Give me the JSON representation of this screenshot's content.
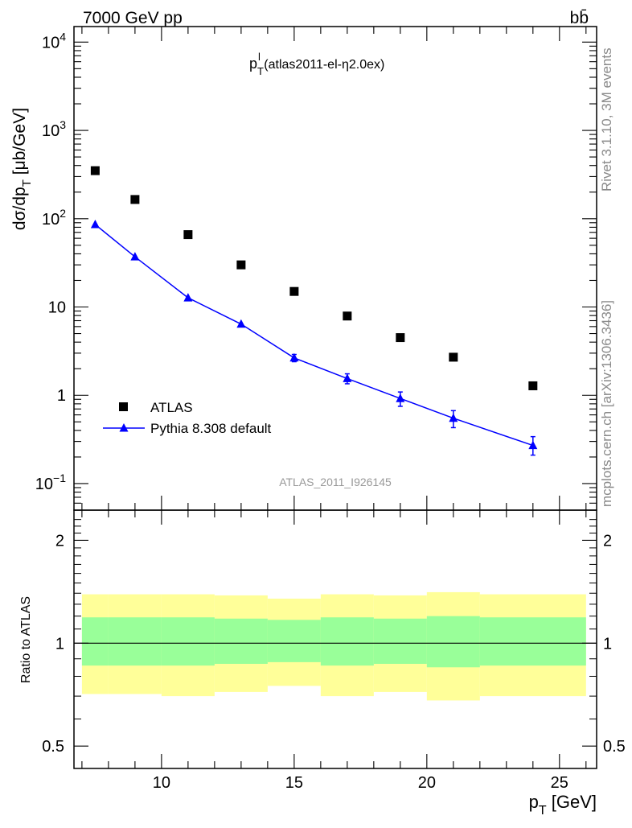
{
  "header": {
    "energy_label": "7000 GeV pp",
    "process_label": "bb̄"
  },
  "side": {
    "rivet_label": "Rivet 3.1.10,  3M events",
    "mcplots_label": "mcplots.cern.ch [arXiv:1306.3436]"
  },
  "chart_data": [
    {
      "type": "scatter",
      "title": "p_T^l (atlas2011-el-η2.0ex)",
      "title_main": "p",
      "title_sub": "T",
      "title_sup": "l",
      "title_rest": " (atlas2011-el-η2.0ex)",
      "ylabel": "dσ/dp_T [μb/GeV]",
      "ylabel_main": "dσ/dp",
      "ylabel_sub": "T",
      "ylabel_rest": " [μb/GeV]",
      "watermark": "ATLAS_2011_I926145",
      "yscale": "log",
      "xlim": [
        6.7,
        26.4
      ],
      "ylim": [
        0.05,
        15000
      ],
      "y_tick_labels": [
        {
          "value": 0.1,
          "label": "10",
          "sup": "−1"
        },
        {
          "value": 1,
          "label": "1",
          "sup": ""
        },
        {
          "value": 10,
          "label": "10",
          "sup": ""
        },
        {
          "value": 100,
          "label": "10",
          "sup": "2"
        },
        {
          "value": 1000,
          "label": "10",
          "sup": "3"
        },
        {
          "value": 10000,
          "label": "10",
          "sup": "4"
        }
      ],
      "legend_position": "bottom-left",
      "series": [
        {
          "name": "ATLAS",
          "color": "#000000",
          "marker": "square",
          "x": [
            7.5,
            9,
            11,
            13,
            15,
            17,
            19,
            21,
            24
          ],
          "y": [
            350,
            165,
            66,
            30,
            15,
            7.9,
            4.5,
            2.7,
            1.28
          ]
        },
        {
          "name": "Pythia 8.308 default",
          "color": "#0000ff",
          "marker": "triangle",
          "x": [
            7.5,
            9,
            11,
            13,
            15,
            17,
            19,
            21,
            24
          ],
          "y": [
            86,
            37,
            12.7,
            6.4,
            2.65,
            1.55,
            0.92,
            0.55,
            0.27
          ],
          "err_low": [
            3,
            1.5,
            0.6,
            0.35,
            0.25,
            0.2,
            0.17,
            0.12,
            0.06
          ],
          "err_high": [
            3,
            1.5,
            0.6,
            0.35,
            0.25,
            0.2,
            0.17,
            0.12,
            0.07
          ]
        }
      ]
    },
    {
      "type": "area",
      "ylabel": "Ratio to ATLAS",
      "xlabel": "p_T [GeV]",
      "xlabel_main": "p",
      "xlabel_sub": "T",
      "xlabel_rest": " [GeV]",
      "xlim": [
        6.7,
        26.4
      ],
      "ylim": [
        0.43,
        2.45
      ],
      "yscale": "log",
      "x_ticks": [
        10,
        15,
        20,
        25
      ],
      "y_ticks": [
        0.5,
        1,
        2
      ],
      "reference_line": 1,
      "bins": [
        {
          "lo": 7,
          "hi": 8,
          "inner": [
            0.86,
            1.19
          ],
          "outer": [
            0.71,
            1.39
          ]
        },
        {
          "lo": 8,
          "hi": 10,
          "inner": [
            0.86,
            1.19
          ],
          "outer": [
            0.71,
            1.39
          ]
        },
        {
          "lo": 10,
          "hi": 12,
          "inner": [
            0.86,
            1.19
          ],
          "outer": [
            0.7,
            1.39
          ]
        },
        {
          "lo": 12,
          "hi": 14,
          "inner": [
            0.87,
            1.18
          ],
          "outer": [
            0.72,
            1.38
          ]
        },
        {
          "lo": 14,
          "hi": 16,
          "inner": [
            0.88,
            1.17
          ],
          "outer": [
            0.75,
            1.35
          ]
        },
        {
          "lo": 16,
          "hi": 18,
          "inner": [
            0.86,
            1.19
          ],
          "outer": [
            0.7,
            1.39
          ]
        },
        {
          "lo": 18,
          "hi": 20,
          "inner": [
            0.87,
            1.18
          ],
          "outer": [
            0.72,
            1.38
          ]
        },
        {
          "lo": 20,
          "hi": 22,
          "inner": [
            0.85,
            1.2
          ],
          "outer": [
            0.68,
            1.41
          ]
        },
        {
          "lo": 22,
          "hi": 26,
          "inner": [
            0.86,
            1.19
          ],
          "outer": [
            0.7,
            1.39
          ]
        }
      ],
      "inner_color": "#99ff99",
      "outer_color": "#ffff99"
    }
  ]
}
